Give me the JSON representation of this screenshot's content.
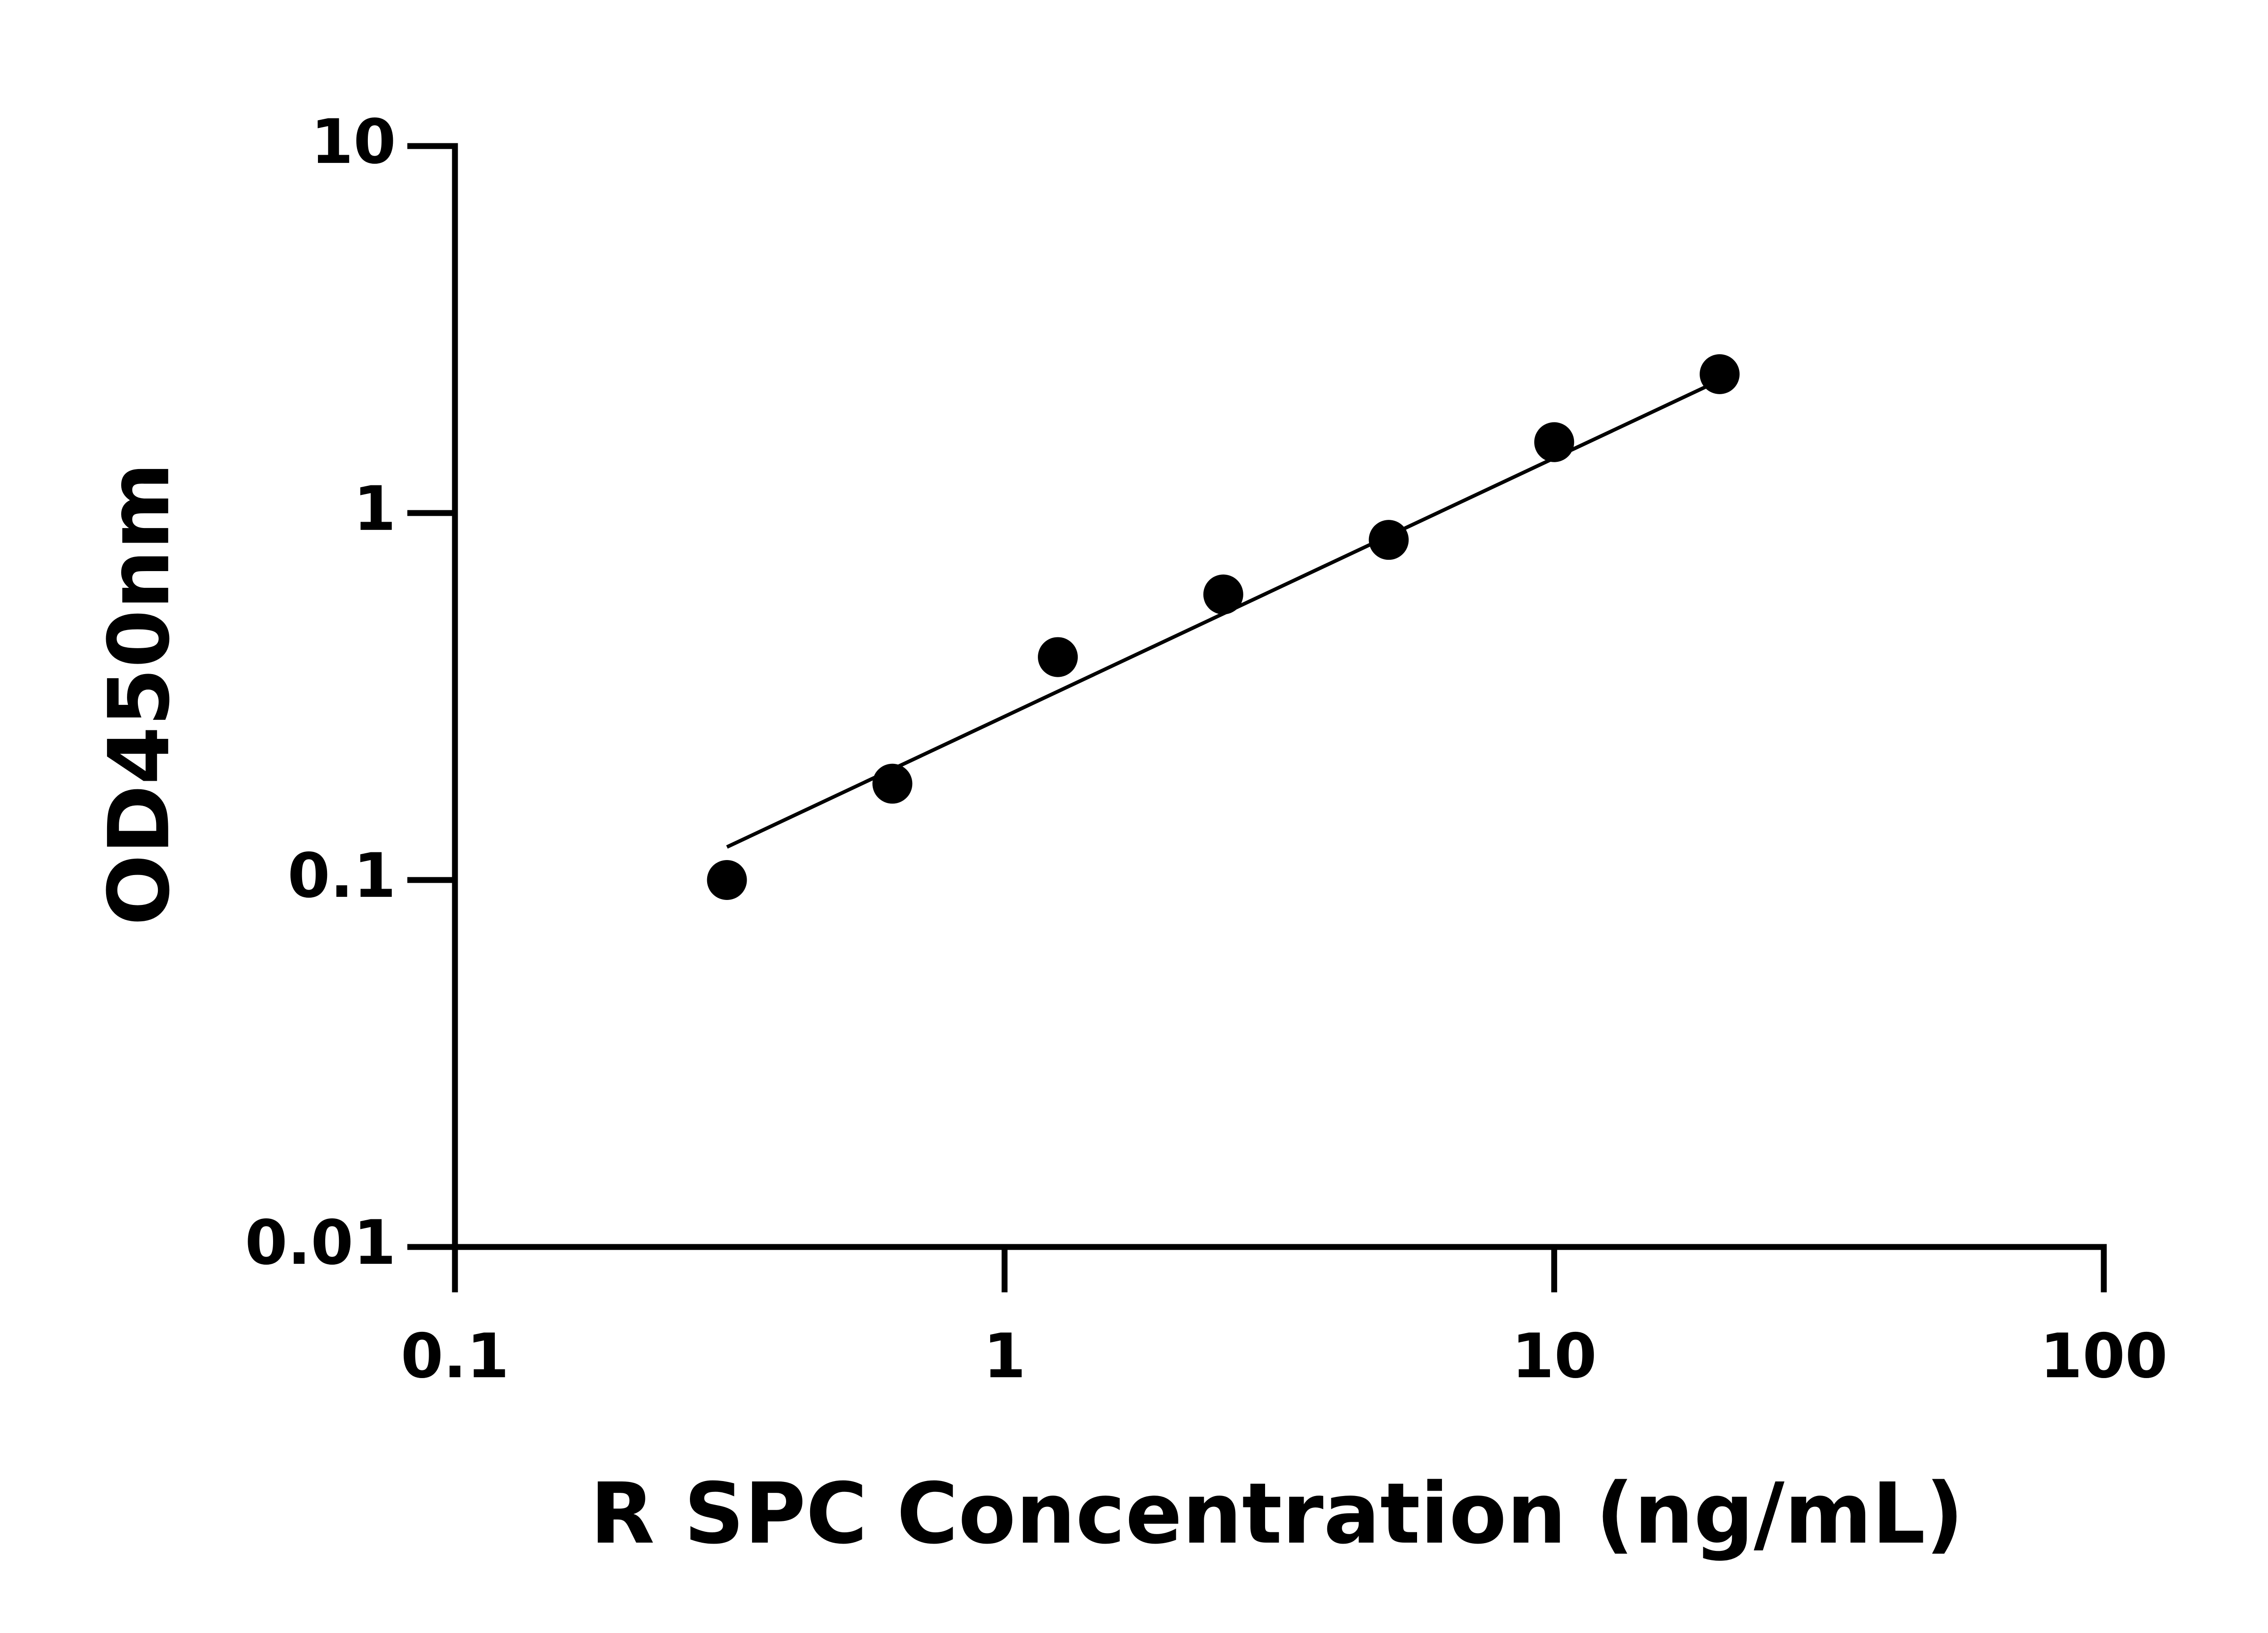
{
  "chart_data": {
    "type": "scatter",
    "x_label": "R SPC Concentration (ng/mL)",
    "y_label": "OD450nm",
    "x": [
      0.3125,
      0.625,
      1.25,
      2.5,
      5,
      10,
      20
    ],
    "series": [
      {
        "color": "#000000",
        "values": [
          0.1,
          0.183,
          0.405,
          0.6,
          0.845,
          1.56,
          2.39
        ]
      }
    ],
    "fit_line": {
      "x": [
        0.3125,
        20
      ],
      "values": [
        0.123,
        2.3
      ],
      "color": "#000000"
    },
    "xlim": [
      0.1,
      100
    ],
    "ylim": [
      0.01,
      10
    ],
    "xticks": [
      0.1,
      1,
      10,
      100
    ],
    "yticks": [
      0.01,
      0.1,
      1,
      10
    ],
    "xscale": "log",
    "yscale": "log",
    "grid": false
  }
}
